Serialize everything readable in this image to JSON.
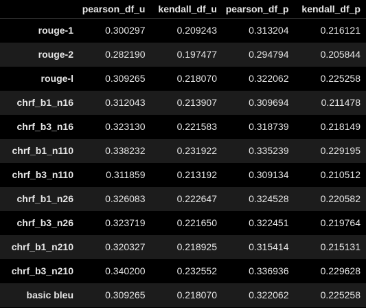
{
  "table": {
    "columns": [
      "",
      "pearson_df_u",
      "kendall_df_u",
      "pearson_df_p",
      "kendall_df_p"
    ],
    "rows": [
      {
        "index": "rouge-1",
        "values": [
          "0.300297",
          "0.209243",
          "0.313204",
          "0.216121"
        ]
      },
      {
        "index": "rouge-2",
        "values": [
          "0.282190",
          "0.197477",
          "0.294794",
          "0.205844"
        ]
      },
      {
        "index": "rouge-l",
        "values": [
          "0.309265",
          "0.218070",
          "0.322062",
          "0.225258"
        ]
      },
      {
        "index": "chrf_b1_n16",
        "values": [
          "0.312043",
          "0.213907",
          "0.309694",
          "0.211478"
        ]
      },
      {
        "index": "chrf_b3_n16",
        "values": [
          "0.323130",
          "0.221583",
          "0.318739",
          "0.218149"
        ]
      },
      {
        "index": "chrf_b1_n110",
        "values": [
          "0.338232",
          "0.231922",
          "0.335239",
          "0.229195"
        ]
      },
      {
        "index": "chrf_b3_n110",
        "values": [
          "0.311859",
          "0.213192",
          "0.309134",
          "0.210512"
        ]
      },
      {
        "index": "chrf_b1_n26",
        "values": [
          "0.326083",
          "0.222647",
          "0.324528",
          "0.220582"
        ]
      },
      {
        "index": "chrf_b3_n26",
        "values": [
          "0.323719",
          "0.221650",
          "0.322451",
          "0.219764"
        ]
      },
      {
        "index": "chrf_b1_n210",
        "values": [
          "0.320327",
          "0.218925",
          "0.315414",
          "0.215131"
        ]
      },
      {
        "index": "chrf_b3_n210",
        "values": [
          "0.340200",
          "0.232552",
          "0.336936",
          "0.229628"
        ]
      },
      {
        "index": "basic bleu",
        "values": [
          "0.309265",
          "0.218070",
          "0.322062",
          "0.225258"
        ]
      }
    ]
  },
  "colors": {
    "background": "#000000",
    "text": "#e6e6e6",
    "stripe": "#1c1c1c",
    "header_rule": "#444444"
  }
}
